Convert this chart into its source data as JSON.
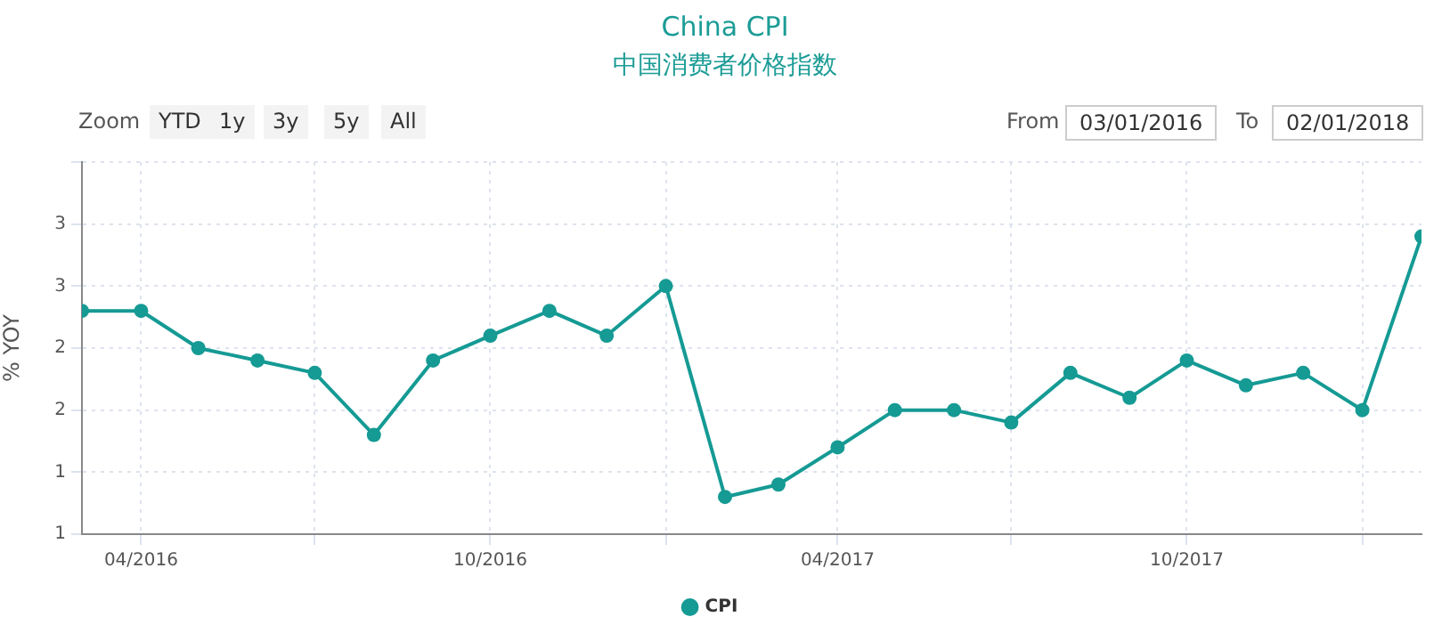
{
  "chart_data": {
    "type": "line",
    "title": "China CPI",
    "subtitle": "中国消费者价格指数",
    "ylabel": "% YOY",
    "x": [
      "2016-03",
      "2016-04",
      "2016-05",
      "2016-06",
      "2016-07",
      "2016-08",
      "2016-09",
      "2016-10",
      "2016-11",
      "2016-12",
      "2017-01",
      "2017-02",
      "2017-03",
      "2017-04",
      "2017-05",
      "2017-06",
      "2017-07",
      "2017-08",
      "2017-09",
      "2017-10",
      "2017-11",
      "2017-12",
      "2018-01",
      "2018-02"
    ],
    "series": [
      {
        "name": "CPI",
        "color": "#159a94",
        "values": [
          2.3,
          2.3,
          2.0,
          1.9,
          1.8,
          1.3,
          1.9,
          2.1,
          2.3,
          2.1,
          2.5,
          0.8,
          0.9,
          1.2,
          1.5,
          1.5,
          1.4,
          1.8,
          1.6,
          1.9,
          1.7,
          1.8,
          1.5,
          2.9
        ]
      }
    ],
    "xlim": [
      "2016-03",
      "2018-02"
    ],
    "xticks": [
      {
        "value": "2016-04",
        "label": "04/2016"
      },
      {
        "value": "2016-07",
        "label": null
      },
      {
        "value": "2016-10",
        "label": "10/2016"
      },
      {
        "value": "2017-01",
        "label": null
      },
      {
        "value": "2017-04",
        "label": "04/2017"
      },
      {
        "value": "2017-07",
        "label": null
      },
      {
        "value": "2017-10",
        "label": "10/2017"
      },
      {
        "value": "2018-01",
        "label": null
      }
    ],
    "ylim": [
      0.5,
      3.5
    ],
    "yticks": [
      {
        "value": 0.5,
        "label": "1"
      },
      {
        "value": 1.0,
        "label": "1"
      },
      {
        "value": 1.5,
        "label": "2"
      },
      {
        "value": 2.0,
        "label": "2"
      },
      {
        "value": 2.5,
        "label": "3"
      },
      {
        "value": 3.0,
        "label": "3"
      },
      {
        "value": 3.5,
        "label": null
      }
    ],
    "grid": true,
    "legend": "bottom",
    "marker": "circle",
    "line_style": "solid",
    "annotations": [
      "Zoom",
      "YTD",
      "1y",
      "3y",
      "5y",
      "All",
      "From",
      "03/01/2016",
      "To",
      "02/01/2018"
    ]
  }
}
